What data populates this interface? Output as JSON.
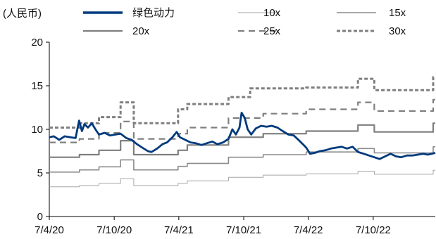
{
  "chart_data": {
    "type": "line",
    "title": "",
    "unit_label": "(人民币)",
    "xlabel": "",
    "ylabel": "",
    "ylim": [
      0,
      20
    ],
    "y_ticks": [
      0,
      5,
      10,
      15,
      20
    ],
    "y_tick_labels": [
      "0",
      "5",
      "10",
      "15",
      "20"
    ],
    "x_range": [
      "2020-04-07",
      "2023-03-31"
    ],
    "x_ticks": [
      "2020-04-07",
      "2020-10-07",
      "2021-04-07",
      "2021-10-07",
      "2022-04-07",
      "2022-10-07"
    ],
    "x_tick_labels": [
      "7/4/20",
      "7/10/20",
      "7/4/21",
      "7/10/21",
      "7/4/22",
      "7/10/22"
    ],
    "grid": false,
    "legend_position": "top",
    "series": [
      {
        "name": "绿色动力",
        "color": "#003a7d",
        "style": "solid-thick",
        "points": [
          [
            "2020-04-07",
            9.1
          ],
          [
            "2020-04-20",
            9.2
          ],
          [
            "2020-05-05",
            8.8
          ],
          [
            "2020-05-20",
            9.2
          ],
          [
            "2020-06-05",
            9.1
          ],
          [
            "2020-06-20",
            9.0
          ],
          [
            "2020-06-30",
            11.0
          ],
          [
            "2020-07-08",
            9.8
          ],
          [
            "2020-07-15",
            10.6
          ],
          [
            "2020-07-25",
            10.2
          ],
          [
            "2020-08-05",
            10.7
          ],
          [
            "2020-08-15",
            10.0
          ],
          [
            "2020-08-25",
            9.4
          ],
          [
            "2020-09-10",
            9.6
          ],
          [
            "2020-09-25",
            9.3
          ],
          [
            "2020-10-10",
            9.4
          ],
          [
            "2020-10-25",
            9.5
          ],
          [
            "2020-11-10",
            9.0
          ],
          [
            "2020-11-25",
            8.8
          ],
          [
            "2020-12-10",
            8.3
          ],
          [
            "2020-12-25",
            7.9
          ],
          [
            "2021-01-10",
            7.5
          ],
          [
            "2021-01-20",
            7.4
          ],
          [
            "2021-02-05",
            7.8
          ],
          [
            "2021-02-20",
            8.3
          ],
          [
            "2021-03-05",
            8.5
          ],
          [
            "2021-03-20",
            9.1
          ],
          [
            "2021-04-01",
            9.7
          ],
          [
            "2021-04-10",
            9.1
          ],
          [
            "2021-04-25",
            8.8
          ],
          [
            "2021-05-10",
            8.5
          ],
          [
            "2021-05-25",
            8.4
          ],
          [
            "2021-06-10",
            8.2
          ],
          [
            "2021-06-25",
            8.4
          ],
          [
            "2021-07-10",
            8.6
          ],
          [
            "2021-07-25",
            8.3
          ],
          [
            "2021-08-10",
            8.5
          ],
          [
            "2021-08-25",
            8.9
          ],
          [
            "2021-09-05",
            10.0
          ],
          [
            "2021-09-15",
            9.4
          ],
          [
            "2021-09-25",
            10.2
          ],
          [
            "2021-10-01",
            11.9
          ],
          [
            "2021-10-10",
            11.3
          ],
          [
            "2021-10-18",
            10.0
          ],
          [
            "2021-10-28",
            9.4
          ],
          [
            "2021-11-10",
            10.1
          ],
          [
            "2021-11-25",
            10.4
          ],
          [
            "2021-12-10",
            10.3
          ],
          [
            "2021-12-25",
            10.4
          ],
          [
            "2022-01-10",
            10.2
          ],
          [
            "2022-01-25",
            9.8
          ],
          [
            "2022-02-10",
            9.4
          ],
          [
            "2022-02-25",
            9.3
          ],
          [
            "2022-03-10",
            8.8
          ],
          [
            "2022-03-25",
            8.2
          ],
          [
            "2022-04-01",
            7.9
          ],
          [
            "2022-04-12",
            7.2
          ],
          [
            "2022-04-25",
            7.3
          ],
          [
            "2022-05-10",
            7.5
          ],
          [
            "2022-05-25",
            7.6
          ],
          [
            "2022-06-10",
            7.8
          ],
          [
            "2022-06-25",
            7.9
          ],
          [
            "2022-07-10",
            8.0
          ],
          [
            "2022-07-25",
            7.8
          ],
          [
            "2022-08-10",
            8.0
          ],
          [
            "2022-08-25",
            7.4
          ],
          [
            "2022-09-10",
            7.2
          ],
          [
            "2022-09-25",
            7.0
          ],
          [
            "2022-10-10",
            6.8
          ],
          [
            "2022-10-25",
            6.6
          ],
          [
            "2022-11-10",
            6.9
          ],
          [
            "2022-11-25",
            7.2
          ],
          [
            "2022-12-10",
            6.9
          ],
          [
            "2022-12-25",
            6.8
          ],
          [
            "2023-01-10",
            7.0
          ],
          [
            "2023-01-25",
            7.0
          ],
          [
            "2023-02-10",
            7.1
          ],
          [
            "2023-02-25",
            7.2
          ],
          [
            "2023-03-10",
            7.1
          ],
          [
            "2023-03-31",
            7.3
          ]
        ]
      },
      {
        "name": "10x",
        "color": "#a6a6a6",
        "style": "solid-thin",
        "points": [
          [
            "2020-04-07",
            3.4
          ],
          [
            "2020-07-01",
            3.4
          ],
          [
            "2020-07-01",
            3.55
          ],
          [
            "2020-08-25",
            3.55
          ],
          [
            "2020-08-25",
            3.8
          ],
          [
            "2020-10-25",
            3.8
          ],
          [
            "2020-10-25",
            4.35
          ],
          [
            "2020-12-01",
            4.35
          ],
          [
            "2020-12-01",
            3.55
          ],
          [
            "2021-04-05",
            3.55
          ],
          [
            "2021-04-05",
            3.8
          ],
          [
            "2021-05-01",
            3.8
          ],
          [
            "2021-05-01",
            4.1
          ],
          [
            "2021-08-25",
            4.1
          ],
          [
            "2021-08-25",
            4.5
          ],
          [
            "2021-12-01",
            4.5
          ],
          [
            "2021-12-01",
            4.75
          ],
          [
            "2022-04-01",
            4.75
          ],
          [
            "2022-04-01",
            4.9
          ],
          [
            "2022-08-25",
            4.9
          ],
          [
            "2022-08-25",
            5.2
          ],
          [
            "2022-10-10",
            5.2
          ],
          [
            "2022-10-10",
            4.85
          ],
          [
            "2023-03-25",
            4.85
          ],
          [
            "2023-03-25",
            5.3
          ],
          [
            "2023-03-31",
            5.3
          ]
        ]
      },
      {
        "name": "15x",
        "color": "#8c8c8c",
        "style": "solid-medium",
        "points": [
          [
            "2020-04-07",
            5.1
          ],
          [
            "2020-07-01",
            5.1
          ],
          [
            "2020-07-01",
            5.35
          ],
          [
            "2020-08-25",
            5.35
          ],
          [
            "2020-08-25",
            5.7
          ],
          [
            "2020-10-25",
            5.7
          ],
          [
            "2020-10-25",
            6.5
          ],
          [
            "2020-12-01",
            6.5
          ],
          [
            "2020-12-01",
            5.35
          ],
          [
            "2021-04-05",
            5.35
          ],
          [
            "2021-04-05",
            5.75
          ],
          [
            "2021-05-01",
            5.75
          ],
          [
            "2021-05-01",
            6.1
          ],
          [
            "2021-08-25",
            6.1
          ],
          [
            "2021-08-25",
            6.8
          ],
          [
            "2021-12-01",
            6.8
          ],
          [
            "2021-12-01",
            7.1
          ],
          [
            "2022-04-01",
            7.1
          ],
          [
            "2022-04-01",
            7.4
          ],
          [
            "2022-08-25",
            7.4
          ],
          [
            "2022-08-25",
            7.8
          ],
          [
            "2022-10-10",
            7.8
          ],
          [
            "2022-10-10",
            7.3
          ],
          [
            "2023-03-25",
            7.3
          ],
          [
            "2023-03-25",
            8.0
          ],
          [
            "2023-03-31",
            8.0
          ]
        ]
      },
      {
        "name": "20x",
        "color": "#7f7f7f",
        "style": "solid-thick",
        "points": [
          [
            "2020-04-07",
            6.8
          ],
          [
            "2020-07-01",
            6.8
          ],
          [
            "2020-07-01",
            7.1
          ],
          [
            "2020-08-25",
            7.1
          ],
          [
            "2020-08-25",
            7.6
          ],
          [
            "2020-10-25",
            7.6
          ],
          [
            "2020-10-25",
            8.7
          ],
          [
            "2020-12-01",
            8.7
          ],
          [
            "2020-12-01",
            7.1
          ],
          [
            "2021-04-05",
            7.1
          ],
          [
            "2021-04-05",
            7.6
          ],
          [
            "2021-05-01",
            7.6
          ],
          [
            "2021-05-01",
            8.2
          ],
          [
            "2021-08-25",
            8.2
          ],
          [
            "2021-08-25",
            9.1
          ],
          [
            "2021-12-01",
            9.1
          ],
          [
            "2021-12-01",
            9.5
          ],
          [
            "2022-04-01",
            9.5
          ],
          [
            "2022-04-01",
            9.8
          ],
          [
            "2022-08-25",
            9.8
          ],
          [
            "2022-08-25",
            10.5
          ],
          [
            "2022-10-10",
            10.5
          ],
          [
            "2022-10-10",
            9.7
          ],
          [
            "2023-03-25",
            9.7
          ],
          [
            "2023-03-25",
            10.7
          ],
          [
            "2023-03-31",
            10.7
          ]
        ]
      },
      {
        "name": "25x",
        "color": "#7f7f7f",
        "style": "dashed",
        "points": [
          [
            "2020-04-07",
            8.5
          ],
          [
            "2020-07-01",
            8.5
          ],
          [
            "2020-07-01",
            8.9
          ],
          [
            "2020-08-25",
            8.9
          ],
          [
            "2020-08-25",
            9.6
          ],
          [
            "2020-10-25",
            9.6
          ],
          [
            "2020-10-25",
            10.9
          ],
          [
            "2020-12-01",
            10.9
          ],
          [
            "2020-12-01",
            8.9
          ],
          [
            "2021-04-05",
            8.9
          ],
          [
            "2021-04-05",
            9.5
          ],
          [
            "2021-05-01",
            9.5
          ],
          [
            "2021-05-01",
            10.2
          ],
          [
            "2021-08-25",
            10.2
          ],
          [
            "2021-08-25",
            11.3
          ],
          [
            "2021-12-01",
            11.3
          ],
          [
            "2021-12-01",
            11.8
          ],
          [
            "2022-04-01",
            11.8
          ],
          [
            "2022-04-01",
            12.3
          ],
          [
            "2022-08-25",
            12.3
          ],
          [
            "2022-08-25",
            13.1
          ],
          [
            "2022-10-10",
            13.1
          ],
          [
            "2022-10-10",
            12.1
          ],
          [
            "2023-03-25",
            12.1
          ],
          [
            "2023-03-25",
            13.4
          ],
          [
            "2023-03-31",
            13.4
          ]
        ]
      },
      {
        "name": "30x",
        "color": "#7f7f7f",
        "style": "dotted",
        "points": [
          [
            "2020-04-07",
            10.2
          ],
          [
            "2020-07-01",
            10.2
          ],
          [
            "2020-07-01",
            10.7
          ],
          [
            "2020-08-25",
            10.7
          ],
          [
            "2020-08-25",
            11.4
          ],
          [
            "2020-10-25",
            11.4
          ],
          [
            "2020-10-25",
            13.1
          ],
          [
            "2020-12-01",
            13.1
          ],
          [
            "2020-12-01",
            10.7
          ],
          [
            "2021-04-05",
            10.7
          ],
          [
            "2021-04-05",
            12.3
          ],
          [
            "2021-05-01",
            12.3
          ],
          [
            "2021-05-01",
            12.9
          ],
          [
            "2021-08-25",
            12.9
          ],
          [
            "2021-08-25",
            13.7
          ],
          [
            "2021-10-25",
            13.7
          ],
          [
            "2021-10-25",
            14.7
          ],
          [
            "2022-04-01",
            14.7
          ],
          [
            "2022-04-01",
            14.8
          ],
          [
            "2022-08-25",
            14.8
          ],
          [
            "2022-08-25",
            15.8
          ],
          [
            "2022-10-10",
            15.8
          ],
          [
            "2022-10-10",
            14.5
          ],
          [
            "2023-03-25",
            14.5
          ],
          [
            "2023-03-25",
            16.0
          ],
          [
            "2023-03-31",
            16.0
          ]
        ]
      }
    ]
  }
}
